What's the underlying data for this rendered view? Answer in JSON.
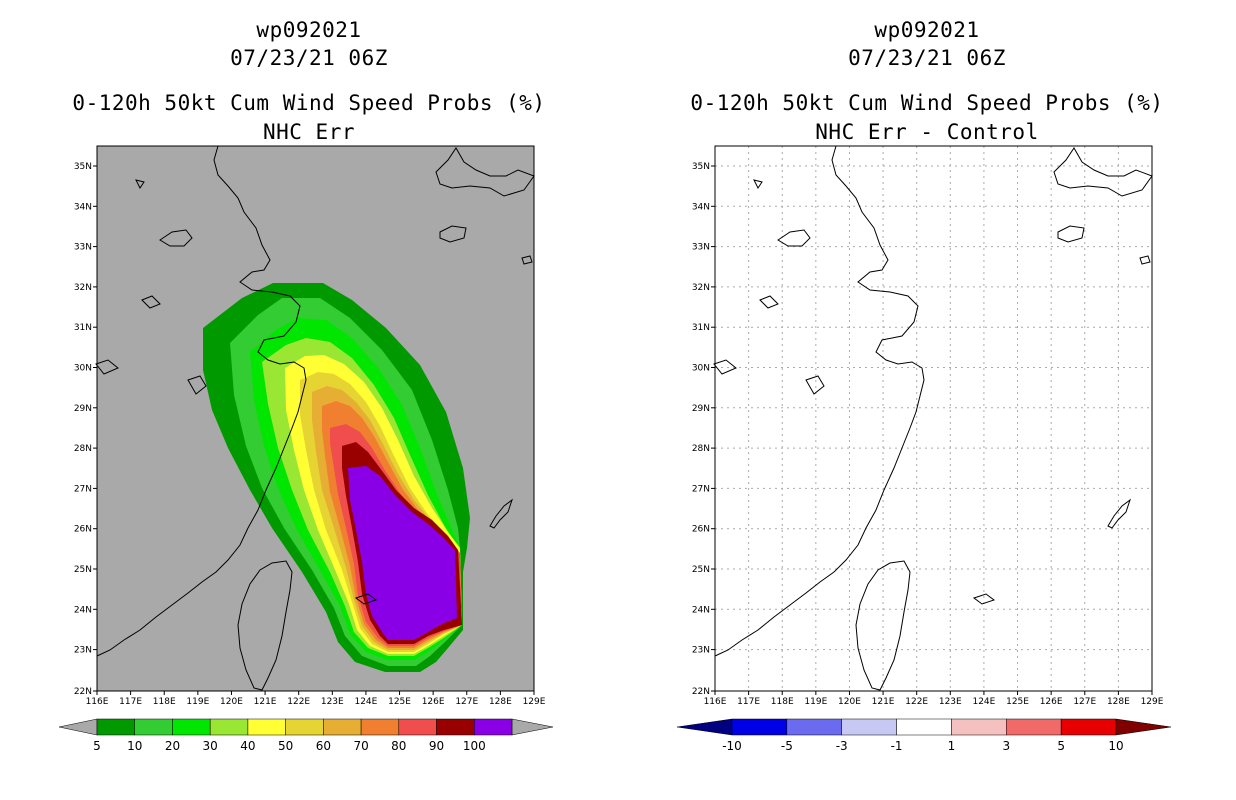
{
  "left_panel": {
    "title_line1": "wp092021",
    "title_line2": "07/23/21 06Z",
    "title_line3": "0-120h 50kt Cum Wind Speed Probs (%)",
    "title_line4": "NHC Err",
    "colorbar_labels": [
      "5",
      "10",
      "20",
      "30",
      "40",
      "50",
      "60",
      "70",
      "80",
      "90",
      "100"
    ],
    "colorbar_colors": [
      "#009900",
      "#33cc33",
      "#00e600",
      "#99e633",
      "#ffff33",
      "#e6d433",
      "#e6ae33",
      "#f08030",
      "#f04d4d",
      "#990000",
      "#8a00e6"
    ],
    "colors": {
      "background": "#a9a9a9",
      "below": "#a9a9a9",
      "above": "#a9a9a9"
    }
  },
  "right_panel": {
    "title_line1": "wp092021",
    "title_line2": "07/23/21 06Z",
    "title_line3": "0-120h 50kt Cum Wind Speed Probs (%)",
    "title_line4": "NHC Err - Control",
    "colorbar_labels": [
      "-10",
      "-5",
      "-3",
      "-1",
      "1",
      "3",
      "5",
      "10"
    ],
    "colorbar_colors": [
      "#000080",
      "#0000e6",
      "#6b6bf0",
      "#c8c8f5",
      "#ffffff",
      "#f5c0c0",
      "#f06a6a",
      "#e60000",
      "#800000"
    ]
  },
  "axes": {
    "lat_labels": [
      "35N",
      "34N",
      "33N",
      "32N",
      "31N",
      "30N",
      "29N",
      "28N",
      "27N",
      "26N",
      "25N",
      "24N",
      "23N",
      "22N"
    ],
    "lon_labels": [
      "116E",
      "117E",
      "118E",
      "119E",
      "120E",
      "121E",
      "122E",
      "123E",
      "124E",
      "125E",
      "126E",
      "127E",
      "128E",
      "129E"
    ]
  }
}
